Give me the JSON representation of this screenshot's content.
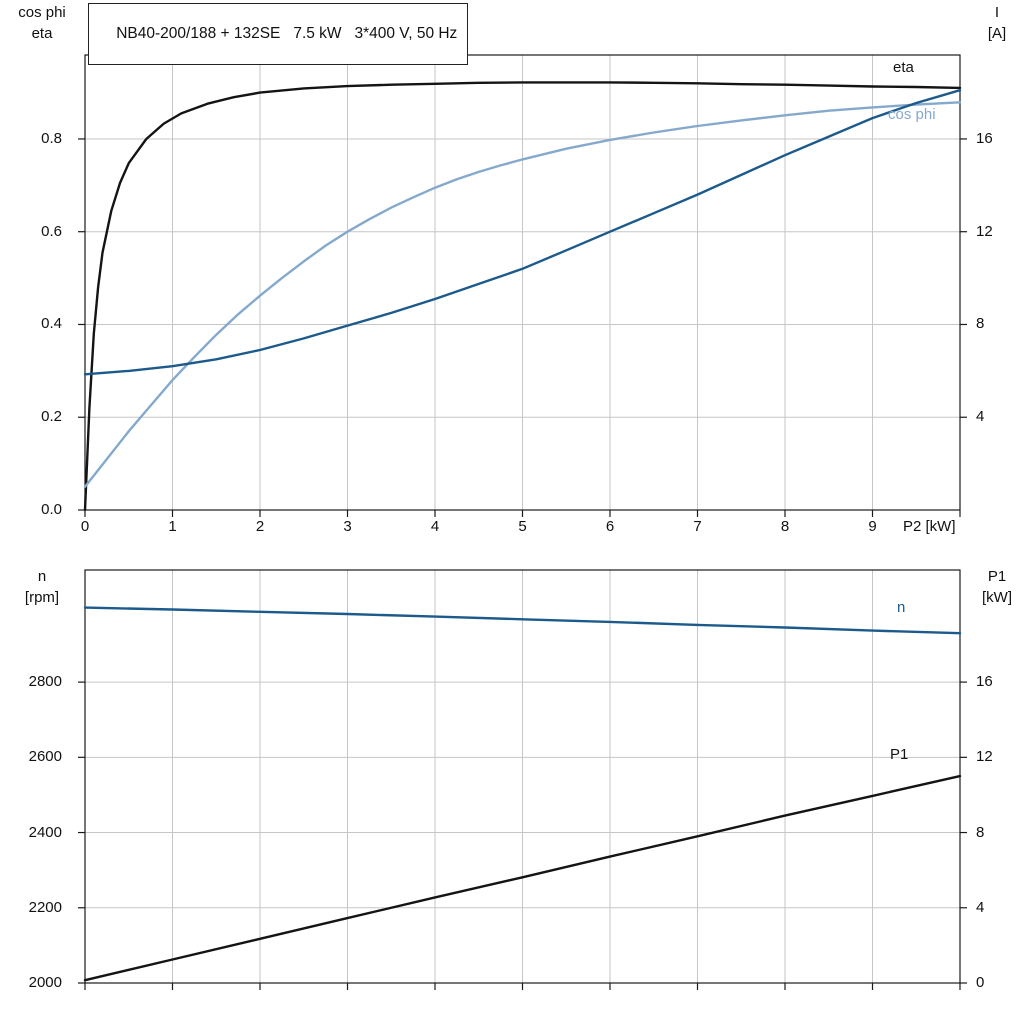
{
  "colors": {
    "black": "#141414",
    "dark_blue": "#1c5a8c",
    "light_blue": "#85a9cd",
    "grid": "#c6c6c6",
    "axis": "#1a1a1a"
  },
  "chart_data": [
    {
      "type": "line",
      "panel": "top",
      "title": "NB40-200/188 + 132SE   7.5 kW   3*400 V, 50 Hz",
      "left_axis": {
        "label_lines": [
          "cos phi",
          "eta"
        ],
        "range": [
          0,
          0.981
        ],
        "ticks": [
          0.0,
          0.2,
          0.4,
          0.6,
          0.8
        ],
        "tick_labels": [
          "0.0",
          "0.2",
          "0.4",
          "0.6",
          "0.8"
        ]
      },
      "right_axis": {
        "label_lines": [
          "I",
          "[A]"
        ],
        "range": [
          0,
          19.62
        ],
        "ticks": [
          4,
          8,
          12,
          16
        ],
        "tick_labels": [
          "4",
          "8",
          "12",
          "16"
        ]
      },
      "x_axis": {
        "range": [
          0,
          10
        ],
        "ticks": [
          0,
          1,
          2,
          3,
          4,
          5,
          6,
          7,
          8,
          9,
          10
        ],
        "tick_labels": [
          "0",
          "1",
          "2",
          "3",
          "4",
          "5",
          "6",
          "7",
          "8",
          "9"
        ],
        "end_label": "P2 [kW]"
      },
      "series": [
        {
          "name": "eta",
          "label": "eta",
          "axis": "left",
          "color_key": "black",
          "points": [
            [
              0,
              0
            ],
            [
              0.05,
              0.22
            ],
            [
              0.1,
              0.38
            ],
            [
              0.15,
              0.48
            ],
            [
              0.2,
              0.555
            ],
            [
              0.3,
              0.645
            ],
            [
              0.4,
              0.705
            ],
            [
              0.5,
              0.748
            ],
            [
              0.7,
              0.8
            ],
            [
              0.9,
              0.833
            ],
            [
              1.1,
              0.855
            ],
            [
              1.4,
              0.876
            ],
            [
              1.7,
              0.89
            ],
            [
              2,
              0.9
            ],
            [
              2.5,
              0.909
            ],
            [
              3,
              0.914
            ],
            [
              3.5,
              0.917
            ],
            [
              4,
              0.919
            ],
            [
              4.5,
              0.921
            ],
            [
              5,
              0.922
            ],
            [
              5.5,
              0.922
            ],
            [
              6,
              0.922
            ],
            [
              6.5,
              0.921
            ],
            [
              7,
              0.92
            ],
            [
              7.5,
              0.918
            ],
            [
              8,
              0.917
            ],
            [
              8.5,
              0.915
            ],
            [
              9,
              0.913
            ],
            [
              9.5,
              0.912
            ],
            [
              10,
              0.91
            ]
          ]
        },
        {
          "name": "cos phi",
          "label": "cos phi",
          "axis": "left",
          "color_key": "light_blue",
          "points": [
            [
              0,
              0.05
            ],
            [
              0.25,
              0.11
            ],
            [
              0.5,
              0.17
            ],
            [
              0.75,
              0.225
            ],
            [
              1,
              0.28
            ],
            [
              1.25,
              0.33
            ],
            [
              1.5,
              0.378
            ],
            [
              1.75,
              0.422
            ],
            [
              2,
              0.462
            ],
            [
              2.25,
              0.5
            ],
            [
              2.5,
              0.536
            ],
            [
              2.75,
              0.57
            ],
            [
              3,
              0.6
            ],
            [
              3.25,
              0.627
            ],
            [
              3.5,
              0.652
            ],
            [
              3.75,
              0.674
            ],
            [
              4,
              0.695
            ],
            [
              4.25,
              0.713
            ],
            [
              4.5,
              0.729
            ],
            [
              4.75,
              0.743
            ],
            [
              5,
              0.756
            ],
            [
              5.5,
              0.779
            ],
            [
              6,
              0.798
            ],
            [
              6.5,
              0.814
            ],
            [
              7,
              0.828
            ],
            [
              7.5,
              0.84
            ],
            [
              8,
              0.851
            ],
            [
              8.5,
              0.861
            ],
            [
              9,
              0.868
            ],
            [
              9.5,
              0.874
            ],
            [
              10,
              0.879
            ]
          ]
        },
        {
          "name": "I",
          "label": "",
          "axis": "right",
          "color_key": "dark_blue",
          "points": [
            [
              0,
              5.85
            ],
            [
              0.5,
              6.0
            ],
            [
              1,
              6.2
            ],
            [
              1.5,
              6.5
            ],
            [
              2,
              6.9
            ],
            [
              2.5,
              7.4
            ],
            [
              3,
              7.95
            ],
            [
              3.5,
              8.5
            ],
            [
              4,
              9.1
            ],
            [
              4.5,
              9.75
            ],
            [
              5,
              10.4
            ],
            [
              5.5,
              11.2
            ],
            [
              6,
              12.0
            ],
            [
              6.5,
              12.8
            ],
            [
              7,
              13.6
            ],
            [
              7.5,
              14.45
            ],
            [
              8,
              15.3
            ],
            [
              8.5,
              16.1
            ],
            [
              9,
              16.9
            ],
            [
              9.5,
              17.55
            ],
            [
              10,
              18.1
            ]
          ]
        }
      ]
    },
    {
      "type": "line",
      "panel": "bottom",
      "title": "",
      "left_axis": {
        "label_lines": [
          "n",
          "[rpm]"
        ],
        "range": [
          2000,
          3098
        ],
        "ticks": [
          2000,
          2200,
          2400,
          2600,
          2800
        ],
        "tick_labels": [
          "2000",
          "2200",
          "2400",
          "2600",
          "2800"
        ]
      },
      "right_axis": {
        "label_lines": [
          "P1",
          "[kW]"
        ],
        "range": [
          0,
          21.96
        ],
        "ticks": [
          0,
          4,
          8,
          12,
          16
        ],
        "tick_labels": [
          "0",
          "4",
          "8",
          "12",
          "16"
        ]
      },
      "x_axis": {
        "range": [
          0,
          10
        ],
        "ticks": [
          0,
          1,
          2,
          3,
          4,
          5,
          6,
          7,
          8,
          9,
          10
        ],
        "tick_labels": [],
        "end_label": ""
      },
      "series": [
        {
          "name": "n",
          "label": "n",
          "axis": "left",
          "color_key": "dark_blue",
          "points": [
            [
              0,
              2998
            ],
            [
              1,
              2993
            ],
            [
              2,
              2987
            ],
            [
              3,
              2981
            ],
            [
              4,
              2974
            ],
            [
              5,
              2967
            ],
            [
              6,
              2960
            ],
            [
              7,
              2952
            ],
            [
              8,
              2945
            ],
            [
              9,
              2937
            ],
            [
              10,
              2930
            ]
          ]
        },
        {
          "name": "P1",
          "label": "P1",
          "axis": "right",
          "color_key": "black",
          "points": [
            [
              0,
              0.15
            ],
            [
              1,
              1.25
            ],
            [
              2,
              2.35
            ],
            [
              3,
              3.45
            ],
            [
              4,
              4.55
            ],
            [
              5,
              5.62
            ],
            [
              6,
              6.72
            ],
            [
              7,
              7.8
            ],
            [
              8,
              8.9
            ],
            [
              9,
              9.95
            ],
            [
              10,
              11.0
            ]
          ]
        }
      ]
    }
  ]
}
